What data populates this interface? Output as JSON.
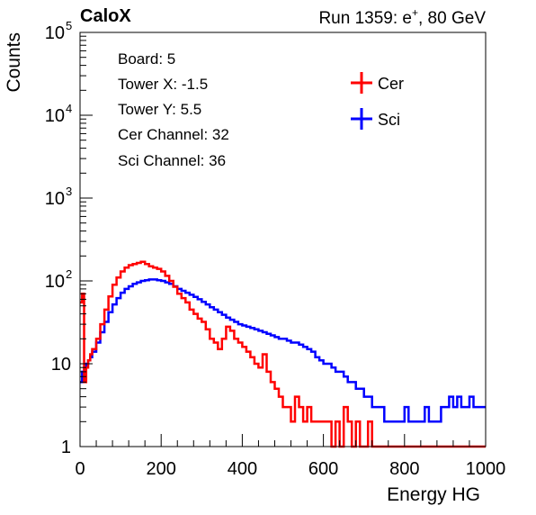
{
  "header": {
    "left": "CaloX",
    "right_prefix": "Run 1359: e",
    "right_sup": "+",
    "right_suffix": ", 80 GeV"
  },
  "info": {
    "lines": [
      "Board: 5",
      "Tower X: -1.5",
      "Tower Y: 5.5",
      "Cer Channel: 32",
      "Sci Channel: 36"
    ]
  },
  "chart_data": {
    "type": "line",
    "title": "",
    "xlabel": "Energy HG",
    "ylabel": "Counts",
    "xlim": [
      0,
      1000
    ],
    "ylim": [
      1,
      100000
    ],
    "yscale": "log",
    "grid": false,
    "legend_position": "top-right",
    "x_ticks": [
      0,
      200,
      400,
      600,
      800,
      1000
    ],
    "x_tick_labels": [
      "0",
      "200",
      "400",
      "600",
      "800",
      "1000"
    ],
    "y_ticks": [
      1,
      10,
      100,
      1000,
      10000,
      100000
    ],
    "y_tick_labels": [
      {
        "base": "1",
        "exp": ""
      },
      {
        "base": "10",
        "exp": ""
      },
      {
        "base": "10",
        "exp": "2"
      },
      {
        "base": "10",
        "exp": "3"
      },
      {
        "base": "10",
        "exp": "4"
      },
      {
        "base": "10",
        "exp": "5"
      }
    ],
    "series": [
      {
        "name": "Cer",
        "color": "#ff0000",
        "x": [
          0,
          5,
          10,
          15,
          20,
          25,
          30,
          40,
          50,
          60,
          70,
          80,
          90,
          100,
          110,
          120,
          130,
          140,
          150,
          160,
          170,
          180,
          190,
          200,
          210,
          220,
          230,
          240,
          250,
          260,
          270,
          280,
          290,
          300,
          310,
          320,
          330,
          340,
          350,
          360,
          370,
          380,
          390,
          400,
          410,
          420,
          430,
          440,
          450,
          460,
          470,
          480,
          490,
          500,
          510,
          520,
          530,
          540,
          550,
          560,
          570,
          580,
          590,
          600,
          610,
          620,
          630,
          640,
          650,
          660,
          670,
          680,
          690,
          700,
          710,
          720,
          730,
          740,
          750,
          760,
          780,
          800,
          850,
          900,
          950,
          1000
        ],
        "y": [
          55,
          70,
          6,
          9,
          11,
          13,
          15,
          20,
          30,
          45,
          65,
          90,
          110,
          130,
          145,
          155,
          160,
          165,
          170,
          160,
          150,
          145,
          140,
          130,
          115,
          100,
          85,
          70,
          62,
          55,
          45,
          40,
          35,
          32,
          26,
          20,
          18,
          15,
          20,
          28,
          25,
          20,
          18,
          16,
          14,
          12,
          10,
          9,
          13,
          8,
          6,
          5,
          4,
          3,
          3,
          2,
          4,
          3,
          2,
          3,
          2,
          2,
          2,
          2,
          2,
          1,
          2,
          1,
          3,
          2,
          1,
          2,
          1,
          1,
          2,
          1,
          1,
          1,
          1,
          1,
          1,
          1,
          1,
          1,
          1,
          1
        ]
      },
      {
        "name": "Sci",
        "color": "#0000ff",
        "x": [
          0,
          5,
          10,
          15,
          20,
          25,
          30,
          40,
          50,
          60,
          70,
          80,
          90,
          100,
          110,
          120,
          130,
          140,
          150,
          160,
          170,
          180,
          190,
          200,
          210,
          220,
          230,
          240,
          250,
          260,
          270,
          280,
          290,
          300,
          310,
          320,
          330,
          340,
          350,
          360,
          370,
          380,
          390,
          400,
          410,
          420,
          430,
          440,
          450,
          460,
          470,
          480,
          490,
          500,
          510,
          520,
          530,
          540,
          550,
          560,
          570,
          580,
          590,
          600,
          610,
          620,
          630,
          640,
          650,
          660,
          670,
          680,
          690,
          700,
          710,
          720,
          730,
          740,
          750,
          760,
          770,
          780,
          790,
          800,
          810,
          820,
          830,
          840,
          850,
          860,
          870,
          880,
          890,
          900,
          910,
          920,
          930,
          940,
          950,
          960,
          970,
          980,
          990,
          1000
        ],
        "y": [
          6,
          8,
          9,
          10,
          11,
          12,
          14,
          18,
          24,
          32,
          42,
          52,
          62,
          72,
          80,
          86,
          92,
          96,
          100,
          102,
          104,
          104,
          102,
          100,
          96,
          92,
          86,
          80,
          76,
          72,
          68,
          64,
          60,
          56,
          52,
          48,
          45,
          42,
          39,
          36,
          34,
          32,
          30,
          29,
          28,
          27,
          26,
          25,
          24,
          23,
          22,
          21,
          20,
          20,
          19,
          18,
          18,
          17,
          16,
          15,
          14,
          12,
          11,
          10,
          10,
          9,
          8,
          8,
          7,
          6,
          6,
          5,
          5,
          4,
          4,
          3,
          3,
          3,
          2,
          2,
          2,
          2,
          2,
          3,
          2,
          2,
          2,
          2,
          3,
          2,
          2,
          2,
          3,
          3,
          4,
          3,
          4,
          3,
          3,
          4,
          3,
          3,
          3,
          3
        ]
      }
    ]
  }
}
